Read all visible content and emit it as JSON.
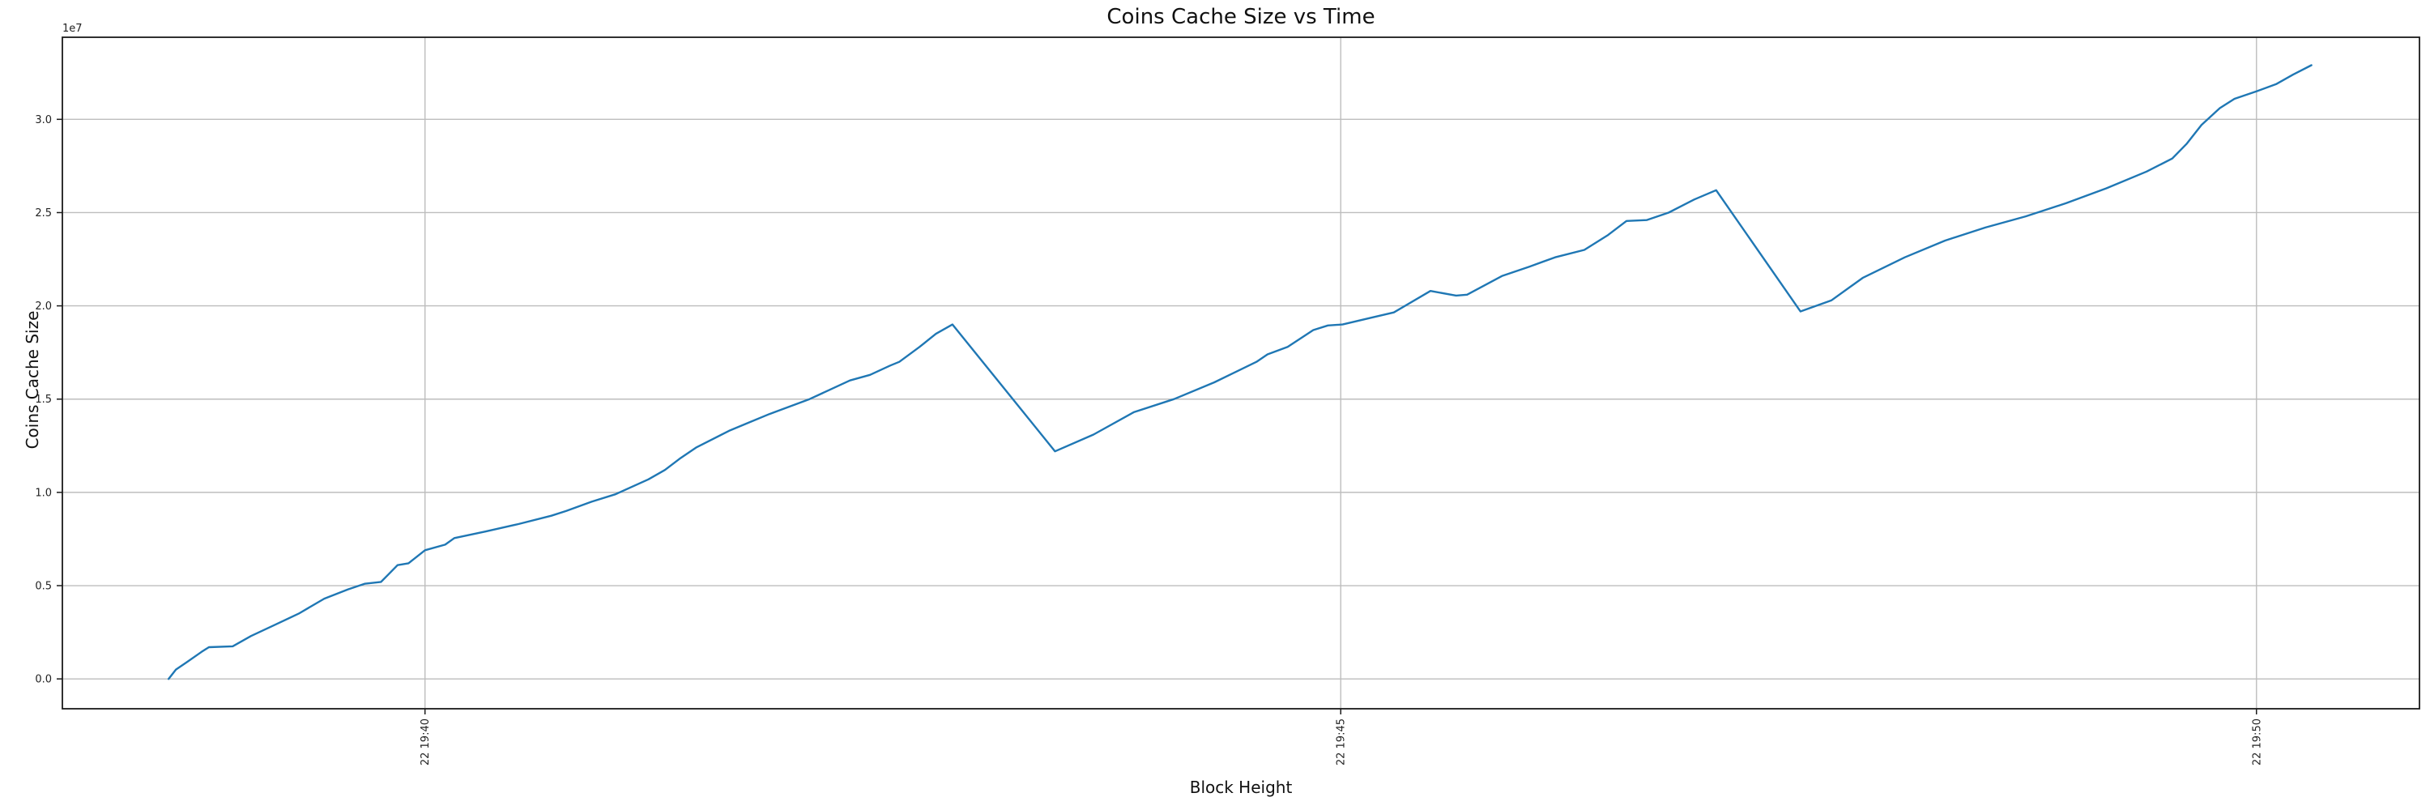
{
  "chart": {
    "title": "Coins Cache Size vs Time",
    "xlabel": "Block Height",
    "ylabel": "Coins Cache Size",
    "y_offset_label": "1e7"
  },
  "chart_data": {
    "type": "line",
    "title": "Coins Cache Size vs Time",
    "xlabel": "Block Height",
    "ylabel": "Coins Cache Size",
    "grid": true,
    "legend": false,
    "line_color": "#1f77b4",
    "grid_color": "#bdbdbd",
    "spine_color": "#1a1a1a",
    "x_axis": {
      "description": "time of day, minutes after 22 19:38",
      "min": 0.02,
      "max": 12.89,
      "tick_rotation_deg": 90,
      "ticks": [
        {
          "t": 2.0,
          "label": "22 19:40"
        },
        {
          "t": 7.0,
          "label": "22 19:45"
        },
        {
          "t": 12.0,
          "label": "22 19:50"
        }
      ]
    },
    "y_axis": {
      "offset_text": "1e7",
      "unit_multiplier": 10000000,
      "min": -0.16,
      "max": 3.44,
      "ticks": [
        {
          "v": 0.0,
          "label": "0.0"
        },
        {
          "v": 0.5,
          "label": "0.5"
        },
        {
          "v": 1.0,
          "label": "1.0"
        },
        {
          "v": 1.5,
          "label": "1.5"
        },
        {
          "v": 2.0,
          "label": "2.0"
        },
        {
          "v": 2.5,
          "label": "2.5"
        },
        {
          "v": 3.0,
          "label": "3.0"
        }
      ]
    },
    "series": [
      {
        "name": "Coins Cache Size",
        "points_t_minutes_v_1e7": [
          [
            0.6,
            0.0
          ],
          [
            0.64,
            0.05
          ],
          [
            0.7,
            0.09
          ],
          [
            0.78,
            0.145
          ],
          [
            0.82,
            0.17
          ],
          [
            0.95,
            0.175
          ],
          [
            1.05,
            0.23
          ],
          [
            1.18,
            0.29
          ],
          [
            1.31,
            0.35
          ],
          [
            1.45,
            0.43
          ],
          [
            1.58,
            0.48
          ],
          [
            1.67,
            0.51
          ],
          [
            1.76,
            0.52
          ],
          [
            1.8,
            0.56
          ],
          [
            1.85,
            0.61
          ],
          [
            1.91,
            0.62
          ],
          [
            2.0,
            0.69
          ],
          [
            2.11,
            0.72
          ],
          [
            2.16,
            0.755
          ],
          [
            2.33,
            0.79
          ],
          [
            2.51,
            0.83
          ],
          [
            2.69,
            0.875
          ],
          [
            2.77,
            0.9
          ],
          [
            2.91,
            0.95
          ],
          [
            3.04,
            0.99
          ],
          [
            3.22,
            1.07
          ],
          [
            3.31,
            1.12
          ],
          [
            3.39,
            1.18
          ],
          [
            3.48,
            1.24
          ],
          [
            3.66,
            1.33
          ],
          [
            3.77,
            1.375
          ],
          [
            3.88,
            1.42
          ],
          [
            3.99,
            1.46
          ],
          [
            4.1,
            1.5
          ],
          [
            4.21,
            1.55
          ],
          [
            4.32,
            1.6
          ],
          [
            4.43,
            1.63
          ],
          [
            4.54,
            1.68
          ],
          [
            4.59,
            1.7
          ],
          [
            4.7,
            1.78
          ],
          [
            4.79,
            1.85
          ],
          [
            4.88,
            1.9
          ],
          [
            5.44,
            1.22
          ],
          [
            5.65,
            1.31
          ],
          [
            5.87,
            1.43
          ],
          [
            6.09,
            1.5
          ],
          [
            6.31,
            1.59
          ],
          [
            6.54,
            1.7
          ],
          [
            6.6,
            1.74
          ],
          [
            6.71,
            1.78
          ],
          [
            6.85,
            1.87
          ],
          [
            6.93,
            1.895
          ],
          [
            7.01,
            1.9
          ],
          [
            7.16,
            1.935
          ],
          [
            7.29,
            1.965
          ],
          [
            7.49,
            2.08
          ],
          [
            7.63,
            2.055
          ],
          [
            7.69,
            2.06
          ],
          [
            7.88,
            2.16
          ],
          [
            8.03,
            2.21
          ],
          [
            8.17,
            2.26
          ],
          [
            8.33,
            2.3
          ],
          [
            8.46,
            2.38
          ],
          [
            8.56,
            2.455
          ],
          [
            8.67,
            2.46
          ],
          [
            8.79,
            2.5
          ],
          [
            8.93,
            2.57
          ],
          [
            9.05,
            2.62
          ],
          [
            9.51,
            1.97
          ],
          [
            9.68,
            2.03
          ],
          [
            9.85,
            2.15
          ],
          [
            10.08,
            2.26
          ],
          [
            10.3,
            2.35
          ],
          [
            10.52,
            2.42
          ],
          [
            10.74,
            2.48
          ],
          [
            10.96,
            2.55
          ],
          [
            11.18,
            2.63
          ],
          [
            11.4,
            2.72
          ],
          [
            11.54,
            2.79
          ],
          [
            11.62,
            2.87
          ],
          [
            11.7,
            2.97
          ],
          [
            11.8,
            3.06
          ],
          [
            11.88,
            3.11
          ],
          [
            12.0,
            3.15
          ],
          [
            12.11,
            3.19
          ],
          [
            12.2,
            3.24
          ],
          [
            12.3,
            3.29
          ]
        ]
      }
    ]
  }
}
